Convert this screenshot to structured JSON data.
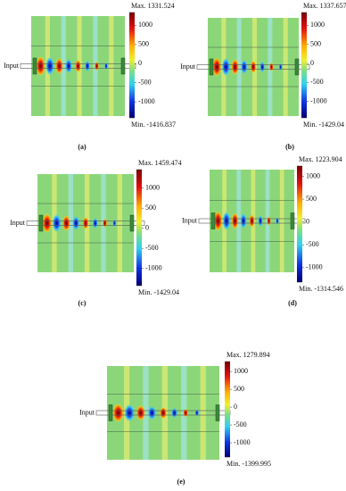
{
  "panels": [
    {
      "label": "(a)",
      "input": "Input",
      "colorbar": {
        "max": 1331.524,
        "min": -1416.837,
        "max_label": "Max. 1331.524",
        "min_label": "Min. -1416.837",
        "ticks": [
          1000,
          500,
          0,
          -500,
          -1000
        ]
      }
    },
    {
      "label": "(b)",
      "input": "Input",
      "colorbar": {
        "max": 1337.657,
        "min": -1429.04,
        "max_label": "Max. 1337.657",
        "min_label": "Min. -1429.04",
        "ticks": [
          1000,
          500,
          0,
          -500,
          -1000
        ]
      }
    },
    {
      "label": "(c)",
      "input": "Input",
      "colorbar": {
        "max": 1459.474,
        "min": -1429.04,
        "max_label": "Max. 1459.474",
        "min_label": "Min. -1429.04",
        "ticks": [
          1000,
          500,
          0,
          -500,
          -1000
        ]
      }
    },
    {
      "label": "(d)",
      "input": "Input",
      "colorbar": {
        "max": 1223.904,
        "min": -1314.546,
        "max_label": "Max. 1223.904",
        "min_label": "Min. -1314.546",
        "ticks": [
          1000,
          500,
          0,
          -500,
          -1000
        ]
      }
    },
    {
      "label": "(e)",
      "input": "Input",
      "colorbar": {
        "max": 1279.894,
        "min": -1399.995,
        "max_label": "Max. 1279.894",
        "min_label": "Min. -1399.995",
        "ticks": [
          1000,
          500,
          0,
          -500,
          -1000
        ]
      }
    }
  ]
}
